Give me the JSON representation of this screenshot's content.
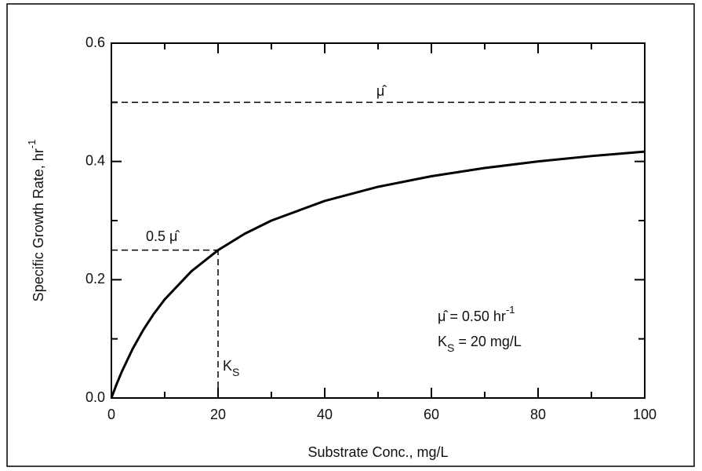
{
  "chart_data": {
    "type": "line",
    "x": [
      0,
      1,
      2,
      4,
      6,
      8,
      10,
      15,
      20,
      25,
      30,
      40,
      50,
      60,
      70,
      80,
      90,
      100
    ],
    "values": [
      0,
      0.0238,
      0.0455,
      0.0833,
      0.1154,
      0.1429,
      0.1667,
      0.2143,
      0.25,
      0.2778,
      0.3,
      0.3333,
      0.3571,
      0.375,
      0.3889,
      0.4,
      0.4091,
      0.4167
    ],
    "color": "#000000",
    "xlim": [
      0,
      100
    ],
    "ylim": [
      0,
      0.6
    ],
    "xticks": [
      0,
      20,
      40,
      60,
      80,
      100
    ],
    "yticks": [
      {
        "value": 0,
        "label": "0.0"
      },
      0.2,
      0.4,
      0.6
    ],
    "xminor": [
      10,
      30,
      50,
      70,
      90
    ],
    "yminor": [
      0.1,
      0.3,
      0.5
    ],
    "x_label": "Substrate Conc., mg/L",
    "y_label": [
      "Specific Growth Rate, hr",
      "-1"
    ],
    "hlines": [
      {
        "y": 0.5,
        "x": [
          0,
          100
        ]
      },
      {
        "y": 0.25,
        "x": [
          0,
          20
        ]
      }
    ],
    "vlines": [
      {
        "x": 20,
        "y": [
          0,
          0.25
        ]
      }
    ],
    "annotations": {
      "mu_max": "μ̂",
      "half": "0.5 μ̂",
      "ks": [
        "K",
        "S"
      ],
      "eq1": [
        "μ̂ = 0.50 hr",
        "-1"
      ],
      "eq2": [
        "K",
        "S",
        " = 20 mg/L"
      ]
    }
  }
}
